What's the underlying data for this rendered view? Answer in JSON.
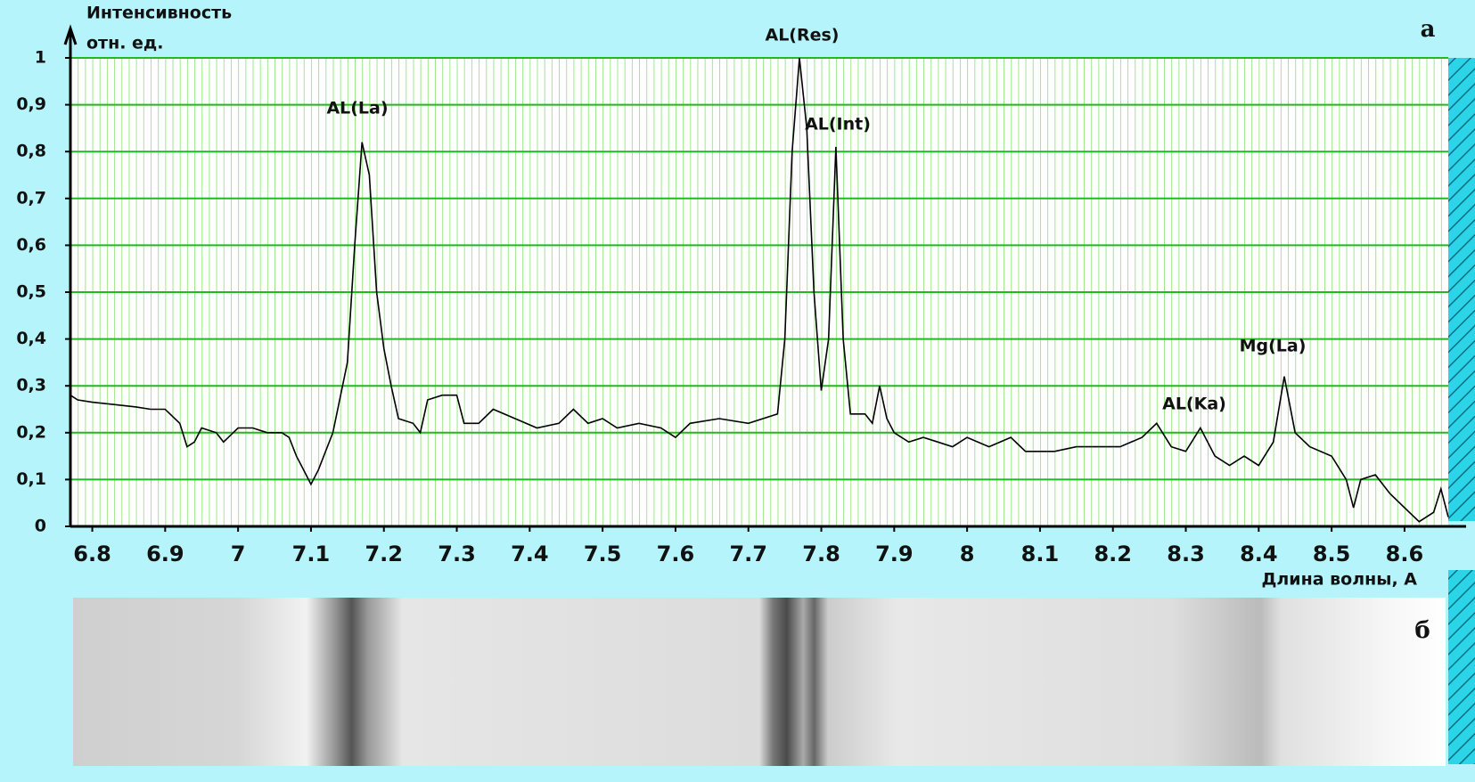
{
  "chart_data": {
    "type": "line",
    "y_label": [
      "Интенсивность",
      "отн. ед."
    ],
    "x_label": "Длина волны, А",
    "annotations": [
      "AL(La)",
      "AL(Res)",
      "AL(Int)",
      "AL(Ka)",
      "Mg(La)"
    ],
    "panel_labels": [
      "а",
      "б"
    ],
    "color": "#000000",
    "grid": true,
    "xlim": [
      6.77,
      8.66
    ],
    "ylim": [
      0,
      1
    ],
    "xticks": [
      6.8,
      6.9,
      7,
      7.1,
      7.2,
      7.3,
      7.4,
      7.5,
      7.6,
      7.7,
      7.8,
      7.9,
      8,
      8.1,
      8.2,
      8.3,
      8.4,
      8.5,
      8.6
    ],
    "yticks": [
      0,
      {
        "value": 0.1,
        "label": "0,1"
      },
      {
        "value": 0.2,
        "label": "0,2"
      },
      {
        "value": 0.3,
        "label": "0,3"
      },
      {
        "value": 0.4,
        "label": "0,4"
      },
      {
        "value": 0.5,
        "label": "0,5"
      },
      {
        "value": 0.6,
        "label": "0,6"
      },
      {
        "value": 0.7,
        "label": "0,7"
      },
      {
        "value": 0.8,
        "label": "0,8"
      },
      {
        "value": 0.9,
        "label": "0,9"
      },
      1
    ],
    "x": [
      6.77,
      6.78,
      6.8,
      6.83,
      6.86,
      6.88,
      6.9,
      6.92,
      6.93,
      6.94,
      6.95,
      6.97,
      6.98,
      7.0,
      7.02,
      7.04,
      7.06,
      7.07,
      7.08,
      7.09,
      7.1,
      7.11,
      7.13,
      7.15,
      7.16,
      7.17,
      7.18,
      7.19,
      7.2,
      7.21,
      7.22,
      7.24,
      7.25,
      7.26,
      7.28,
      7.3,
      7.31,
      7.33,
      7.35,
      7.38,
      7.41,
      7.44,
      7.46,
      7.48,
      7.5,
      7.52,
      7.55,
      7.58,
      7.6,
      7.62,
      7.66,
      7.7,
      7.74,
      7.75,
      7.76,
      7.77,
      7.78,
      7.79,
      7.8,
      7.81,
      7.82,
      7.83,
      7.84,
      7.86,
      7.87,
      7.88,
      7.89,
      7.9,
      7.92,
      7.94,
      7.96,
      7.98,
      8.0,
      8.03,
      8.06,
      8.08,
      8.12,
      8.15,
      8.18,
      8.21,
      8.24,
      8.26,
      8.28,
      8.3,
      8.32,
      8.34,
      8.36,
      8.38,
      8.4,
      8.42,
      8.435,
      8.45,
      8.47,
      8.5,
      8.52,
      8.53,
      8.54,
      8.56,
      8.58,
      8.6,
      8.62,
      8.64,
      8.65,
      8.66
    ],
    "values": [
      0.28,
      0.27,
      0.265,
      0.26,
      0.255,
      0.25,
      0.25,
      0.22,
      0.17,
      0.18,
      0.21,
      0.2,
      0.18,
      0.21,
      0.21,
      0.2,
      0.2,
      0.19,
      0.15,
      0.12,
      0.09,
      0.12,
      0.2,
      0.35,
      0.6,
      0.82,
      0.75,
      0.5,
      0.38,
      0.3,
      0.23,
      0.22,
      0.2,
      0.27,
      0.28,
      0.28,
      0.22,
      0.22,
      0.25,
      0.23,
      0.21,
      0.22,
      0.25,
      0.22,
      0.23,
      0.21,
      0.22,
      0.21,
      0.19,
      0.22,
      0.23,
      0.22,
      0.24,
      0.4,
      0.8,
      1.0,
      0.85,
      0.5,
      0.29,
      0.4,
      0.81,
      0.4,
      0.24,
      0.24,
      0.22,
      0.3,
      0.23,
      0.2,
      0.18,
      0.19,
      0.18,
      0.17,
      0.19,
      0.17,
      0.19,
      0.16,
      0.16,
      0.17,
      0.17,
      0.17,
      0.19,
      0.22,
      0.17,
      0.16,
      0.21,
      0.15,
      0.13,
      0.15,
      0.13,
      0.18,
      0.32,
      0.2,
      0.17,
      0.15,
      0.1,
      0.04,
      0.1,
      0.11,
      0.07,
      0.04,
      0.01,
      0.03,
      0.08,
      0.02
    ]
  }
}
